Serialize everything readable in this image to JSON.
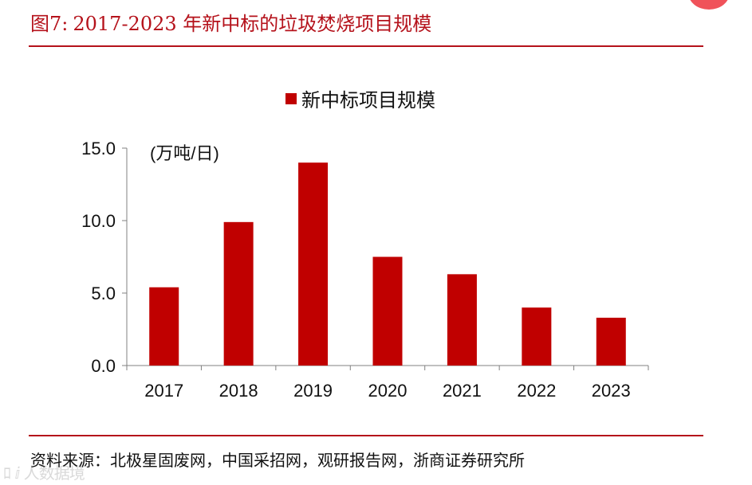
{
  "header": {
    "figure_number": "图7:",
    "title": "2017-2023 年新中标的垃圾焚烧项目规模"
  },
  "footer": {
    "source": "资料来源：北极星固废网，中国采招网，观研报告网，浙商证券研究所"
  },
  "watermark": "ﾛ ⅈ 人数据境",
  "colors": {
    "accent": "#b5121b",
    "bar": "#c00000",
    "badge": "#f0525a"
  },
  "chart_data": {
    "type": "bar",
    "categories": [
      "2017",
      "2018",
      "2019",
      "2020",
      "2021",
      "2022",
      "2023"
    ],
    "series": [
      {
        "name": "新中标项目规模",
        "values": [
          5.4,
          9.9,
          14.0,
          7.5,
          6.3,
          4.0,
          3.3
        ]
      }
    ],
    "unit_label": "(万吨/日)",
    "y_ticks": [
      "0.0",
      "5.0",
      "10.0",
      "15.0"
    ],
    "ylim": [
      0,
      15
    ],
    "legend_position": "top-center",
    "grid": false
  }
}
